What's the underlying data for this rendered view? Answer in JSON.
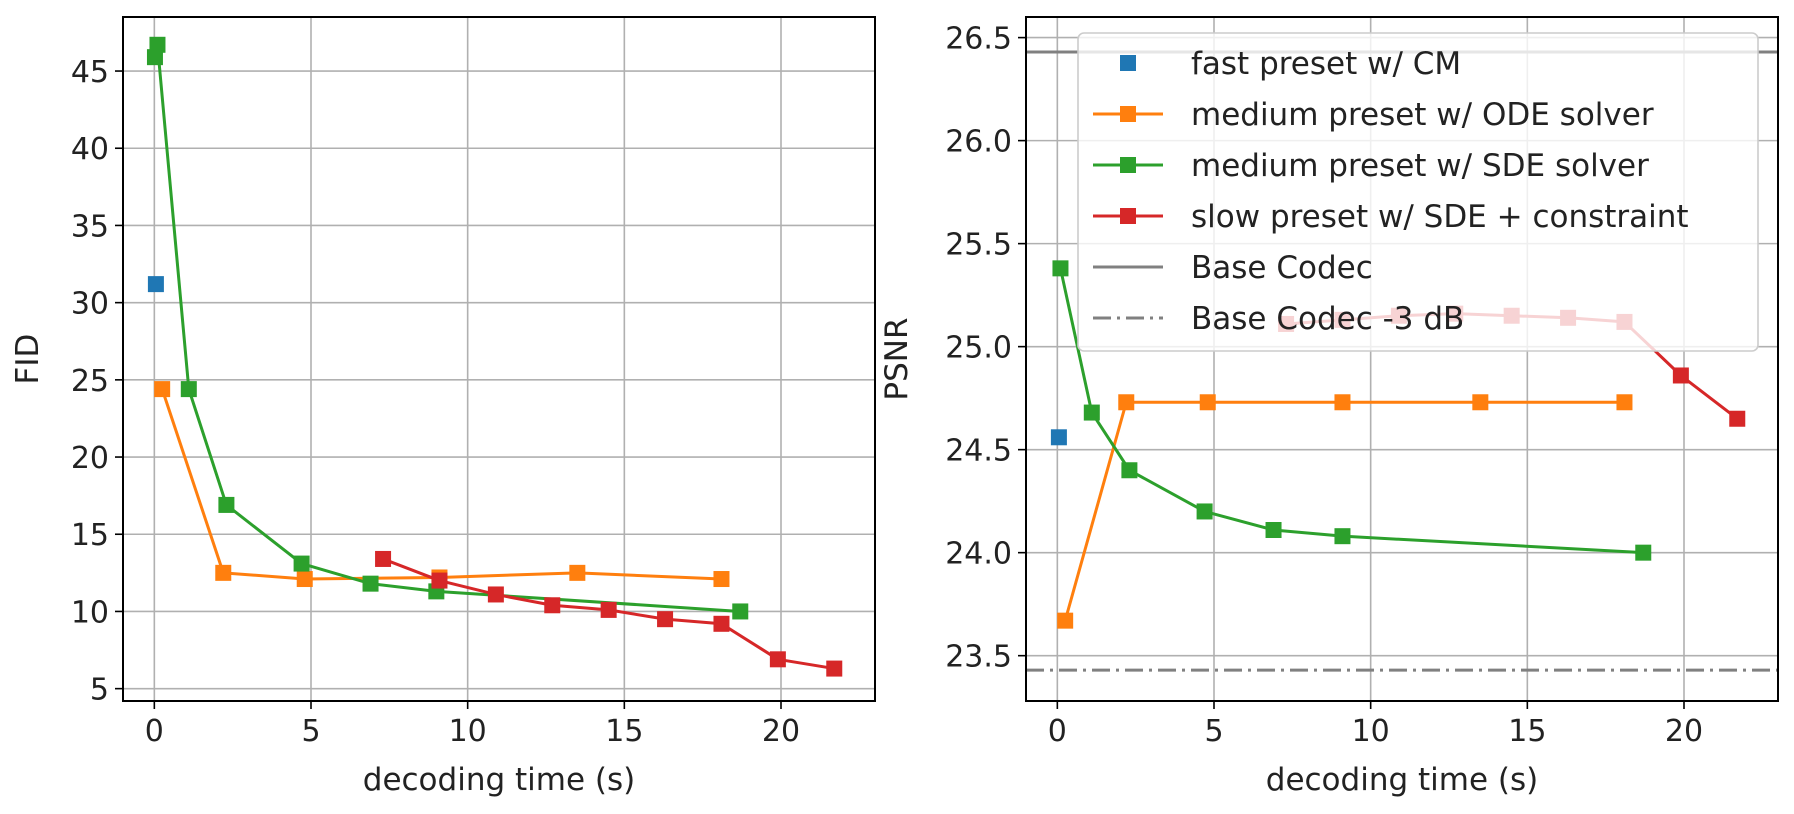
{
  "chart_data": [
    {
      "type": "line",
      "xlabel": "decoding time (s)",
      "ylabel": "FID",
      "xlim": [
        -1,
        23
      ],
      "ylim": [
        4.2,
        48.5
      ],
      "xticks": [
        0,
        5,
        10,
        15,
        20
      ],
      "yticks": [
        5,
        10,
        15,
        20,
        25,
        30,
        35,
        40,
        45
      ],
      "grid": true,
      "series": [
        {
          "name": "fast preset w/ CM",
          "color": "#1f77b4",
          "line": false,
          "x": [
            0.05
          ],
          "y": [
            31.2
          ]
        },
        {
          "name": "medium preset w/ ODE solver",
          "color": "#ff7f0e",
          "line": true,
          "x": [
            0.25,
            2.2,
            4.8,
            9.1,
            13.5,
            18.1
          ],
          "y": [
            24.4,
            12.5,
            12.1,
            12.2,
            12.5,
            12.1
          ]
        },
        {
          "name": "medium preset w/ SDE solver",
          "color": "#2ca02c",
          "line": true,
          "x": [
            0.02,
            0.1,
            1.1,
            2.3,
            4.7,
            6.9,
            9.0,
            18.7
          ],
          "y": [
            45.9,
            46.7,
            24.4,
            16.9,
            13.1,
            11.8,
            11.3,
            10.0
          ]
        },
        {
          "name": "slow preset w/ SDE + constraint",
          "color": "#d62728",
          "line": true,
          "x": [
            7.3,
            9.1,
            10.9,
            12.7,
            14.5,
            16.3,
            18.1,
            19.9,
            21.7
          ],
          "y": [
            13.4,
            12.0,
            11.1,
            10.4,
            10.1,
            9.5,
            9.2,
            6.9,
            6.3
          ]
        }
      ]
    },
    {
      "type": "line",
      "xlabel": "decoding time (s)",
      "ylabel": "PSNR",
      "xlim": [
        -1,
        23
      ],
      "ylim": [
        23.28,
        26.6
      ],
      "xticks": [
        0,
        5,
        10,
        15,
        20
      ],
      "yticks": [
        "23.5",
        "24.0",
        "24.5",
        "25.0",
        "25.5",
        "26.0",
        "26.5"
      ],
      "grid": true,
      "legend_position": "top-right",
      "series": [
        {
          "name": "fast preset w/ CM",
          "color": "#1f77b4",
          "line": false,
          "x": [
            0.05
          ],
          "y": [
            24.56
          ]
        },
        {
          "name": "medium preset w/ ODE solver",
          "color": "#ff7f0e",
          "line": true,
          "x": [
            0.25,
            2.2,
            4.8,
            9.1,
            13.5,
            18.1
          ],
          "y": [
            23.67,
            24.73,
            24.73,
            24.73,
            24.73,
            24.73
          ]
        },
        {
          "name": "medium preset w/ SDE solver",
          "color": "#2ca02c",
          "line": true,
          "x": [
            0.1,
            1.1,
            2.3,
            4.7,
            6.9,
            9.1,
            18.7
          ],
          "y": [
            25.38,
            24.68,
            24.4,
            24.2,
            24.11,
            24.08,
            24.0
          ]
        },
        {
          "name": "slow preset w/ SDE + constraint",
          "color": "#d62728",
          "line": true,
          "x": [
            7.3,
            9.1,
            10.9,
            12.7,
            14.5,
            16.3,
            18.1,
            19.9,
            21.7
          ],
          "y": [
            25.11,
            25.13,
            25.15,
            25.16,
            25.15,
            25.14,
            25.12,
            24.86,
            24.65
          ]
        }
      ],
      "reference_lines": [
        {
          "name": "Base Codec",
          "y": 26.43,
          "color": "#808080",
          "style": "solid"
        },
        {
          "name": "Base Codec -3 dB",
          "y": 23.43,
          "color": "#808080",
          "style": "dashdot"
        }
      ]
    }
  ]
}
